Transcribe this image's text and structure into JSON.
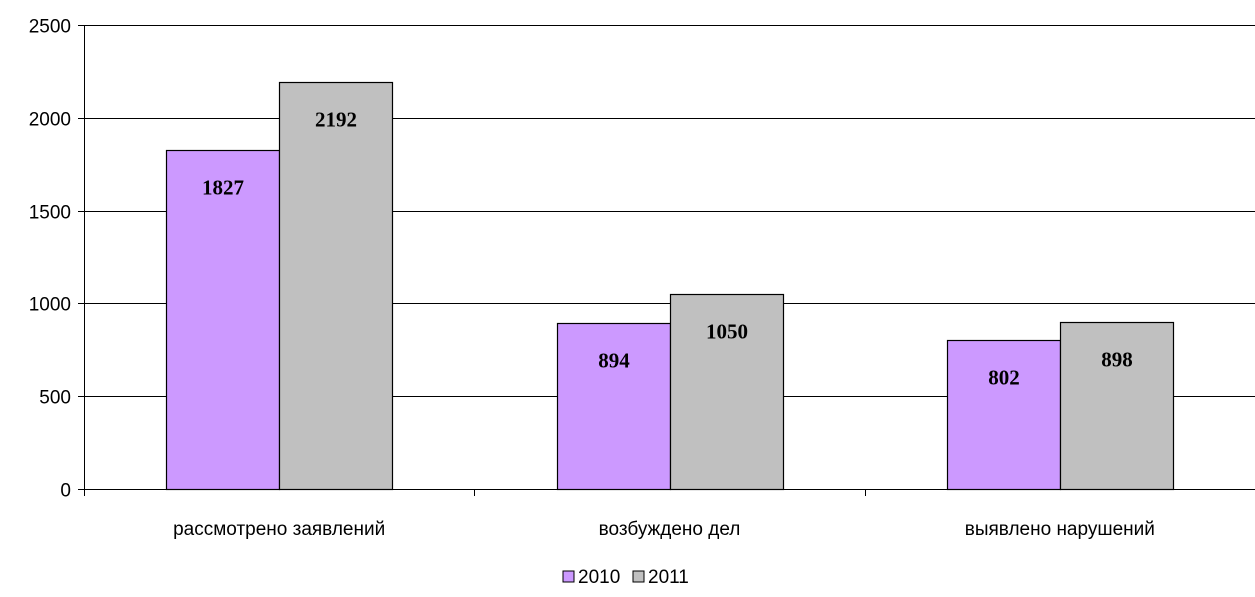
{
  "chart_data": {
    "type": "bar",
    "categories": [
      "рассмотрено заявлений",
      "возбуждено дел",
      "выявлено нарушений"
    ],
    "series": [
      {
        "name": "2010",
        "values": [
          1827,
          894,
          802
        ],
        "color": "#cc99ff"
      },
      {
        "name": "2011",
        "values": [
          2192,
          1050,
          898
        ],
        "color": "#c0c0c0"
      }
    ],
    "ylim": [
      0,
      2500
    ],
    "yticks": [
      0,
      500,
      1000,
      1500,
      2000,
      2500
    ],
    "grid": true,
    "legend_position": "bottom",
    "data_labels": true
  }
}
